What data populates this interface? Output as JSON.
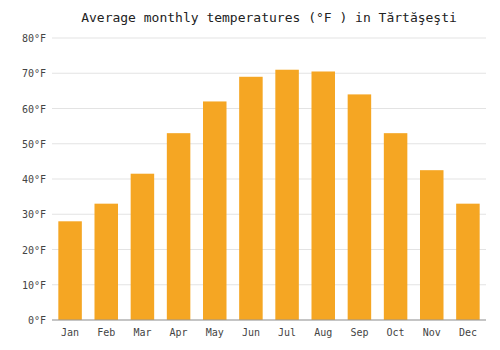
{
  "chart_data": {
    "type": "bar",
    "title": "Average monthly temperatures (°F ) in Tărtăşeşti",
    "categories": [
      "Jan",
      "Feb",
      "Mar",
      "Apr",
      "May",
      "Jun",
      "Jul",
      "Aug",
      "Sep",
      "Oct",
      "Nov",
      "Dec"
    ],
    "values": [
      28,
      33,
      41.5,
      53,
      62,
      69,
      71,
      70.5,
      64,
      53,
      42.5,
      33
    ],
    "color": "#F5A623",
    "ylim": [
      0,
      80
    ],
    "yticks": [
      {
        "value": 0,
        "label": "0°F"
      },
      {
        "value": 10,
        "label": "10°F"
      },
      {
        "value": 20,
        "label": "20°F"
      },
      {
        "value": 30,
        "label": "30°F"
      },
      {
        "value": 40,
        "label": "40°F"
      },
      {
        "value": 50,
        "label": "50°F"
      },
      {
        "value": 60,
        "label": "60°F"
      },
      {
        "value": 70,
        "label": "70°F"
      },
      {
        "value": 80,
        "label": "80°F"
      }
    ],
    "grid": true
  }
}
